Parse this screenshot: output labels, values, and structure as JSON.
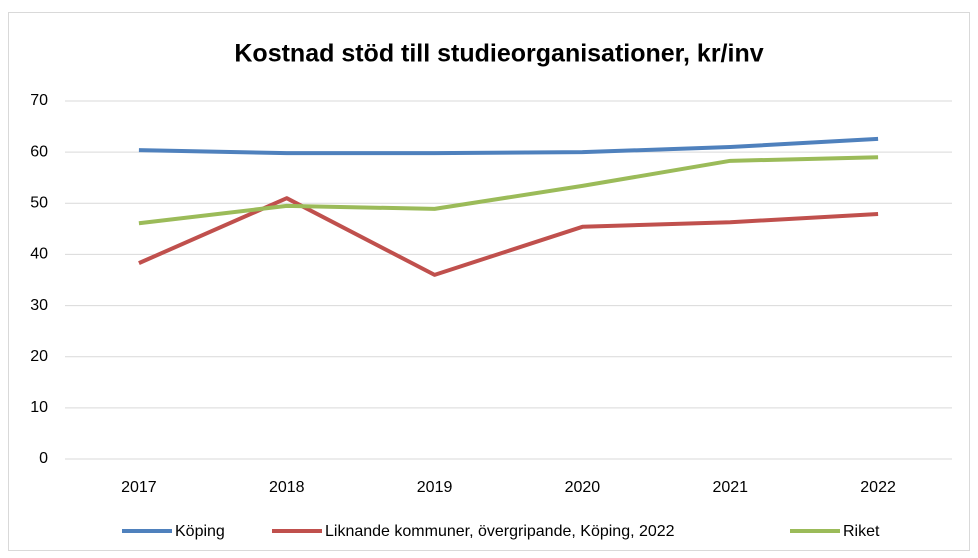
{
  "chart_data": {
    "type": "line",
    "title": "Kostnad stöd till studieorganisationer, kr/inv",
    "categories": [
      "2017",
      "2018",
      "2019",
      "2020",
      "2021",
      "2022"
    ],
    "series": [
      {
        "name": "Köping",
        "color": "#4f81bd",
        "values": [
          60.4,
          59.8,
          59.8,
          60.0,
          61.0,
          62.6
        ]
      },
      {
        "name": "Liknande kommuner, övergripande, Köping, 2022",
        "color": "#c0504d",
        "values": [
          38.3,
          51.0,
          36.0,
          45.4,
          46.3,
          47.9
        ]
      },
      {
        "name": "Riket",
        "color": "#9bbb59",
        "values": [
          46.1,
          49.5,
          48.9,
          53.4,
          58.3,
          59.0
        ]
      }
    ],
    "ylim": [
      0,
      70
    ],
    "yticks": [
      0,
      10,
      20,
      30,
      40,
      50,
      60,
      70
    ],
    "grid": true,
    "legend": "bottom"
  }
}
